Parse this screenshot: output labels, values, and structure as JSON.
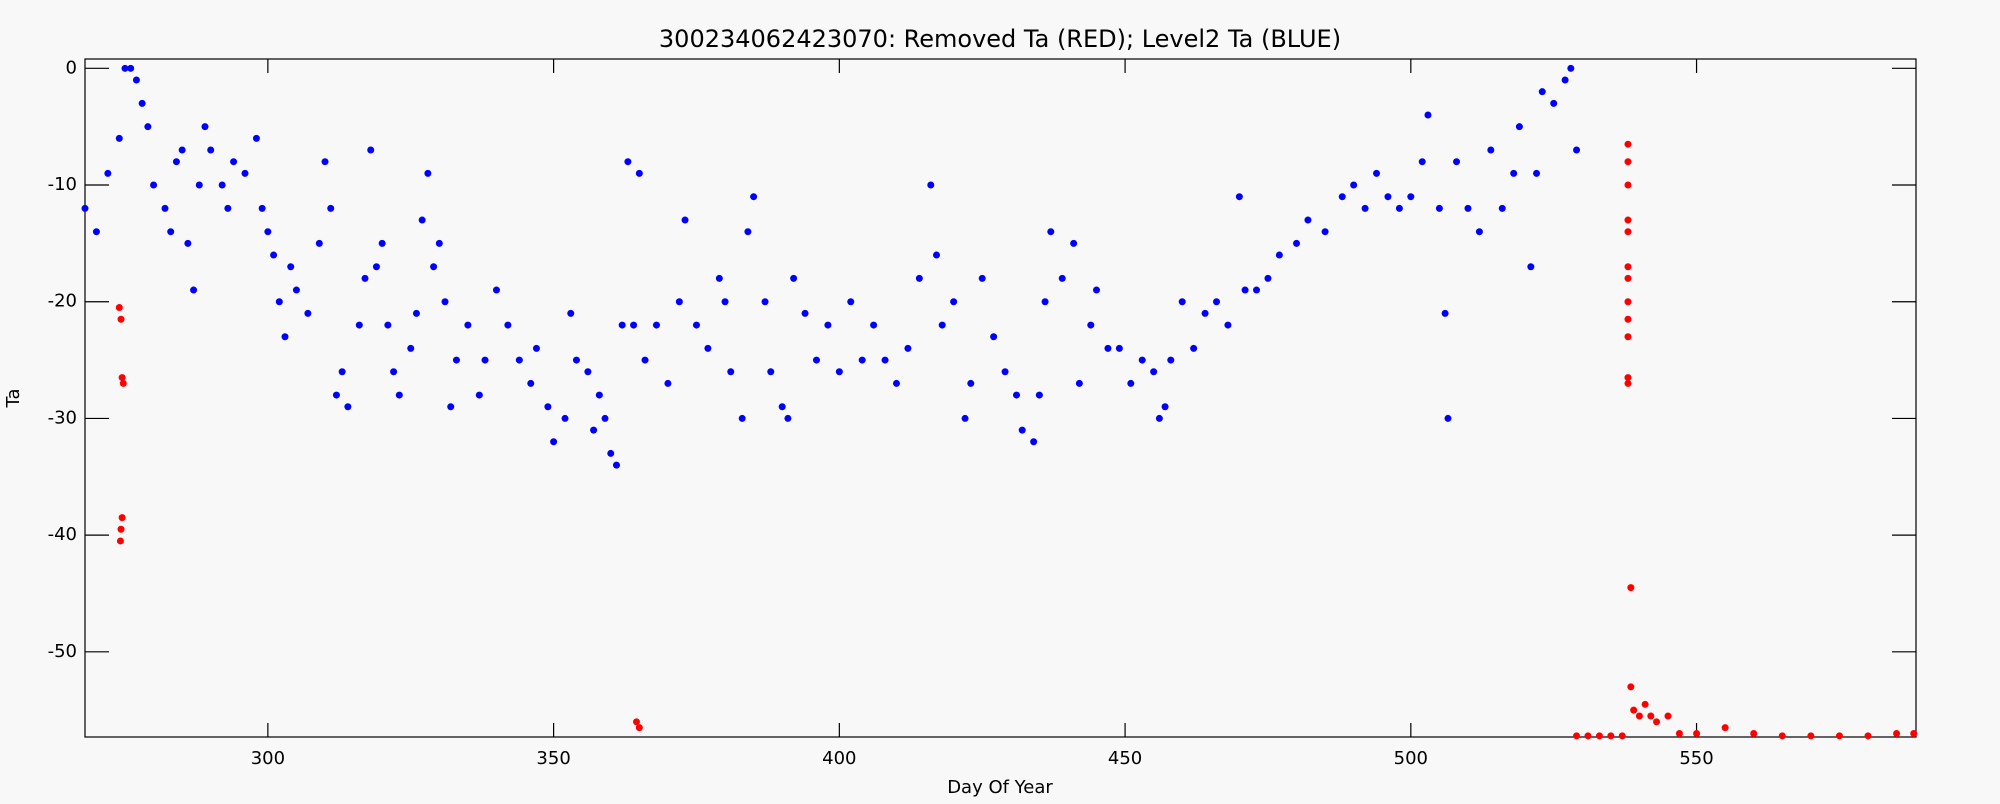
{
  "chart_data": {
    "type": "scatter",
    "title": "300234062423070: Removed Ta (RED); Level2 Ta (BLUE)",
    "x_label": "Day Of Year",
    "y_label": "Ta",
    "xlim": [
      268,
      588.4
    ],
    "ylim": [
      -57.3,
      0.8
    ],
    "xticks": [
      300,
      350,
      400,
      450,
      500,
      550
    ],
    "yticks": [
      -50,
      -40,
      -30,
      -20,
      -10,
      0
    ],
    "series": [
      {
        "color": "#0000ff",
        "x": [
          268,
          270,
          272,
          274,
          275,
          276,
          277,
          278,
          279,
          280,
          282,
          283,
          284,
          285,
          286,
          287,
          288,
          289,
          290,
          292,
          293,
          294,
          296,
          298,
          299,
          300,
          301,
          302,
          303,
          304,
          305,
          307,
          309,
          310,
          311,
          312,
          313,
          314,
          316,
          317,
          318,
          319,
          320,
          321,
          322,
          323,
          325,
          326,
          327,
          328,
          329,
          330,
          331,
          332,
          333,
          335,
          337,
          338,
          340,
          342,
          344,
          346,
          347,
          349,
          350,
          352,
          353,
          354,
          356,
          357,
          358,
          359,
          360,
          361,
          362,
          363,
          364,
          365,
          366,
          368,
          370,
          372,
          373,
          375,
          377,
          379,
          380,
          381,
          383,
          384,
          385,
          387,
          388,
          390,
          391,
          392,
          394,
          396,
          398,
          400,
          402,
          404,
          406,
          408,
          410,
          412,
          414,
          416,
          417,
          418,
          420,
          422,
          423,
          425,
          427,
          429,
          431,
          432,
          434,
          435,
          436,
          437,
          439,
          441,
          442,
          444,
          445,
          447,
          449,
          451,
          453,
          455,
          456,
          457,
          458,
          460,
          462,
          464,
          466,
          468,
          470,
          471,
          473,
          475,
          477,
          480,
          482,
          485,
          488,
          490,
          492,
          494,
          496,
          498,
          500,
          502,
          503,
          505,
          506,
          506.5,
          508,
          510,
          512,
          514,
          516,
          518,
          519,
          521,
          522,
          523,
          525,
          527,
          528,
          529
        ],
        "values": [
          -12,
          -14,
          -9,
          -6,
          0,
          0,
          -1,
          -3,
          -5,
          -10,
          -12,
          -14,
          -8,
          -7,
          -15,
          -19,
          -10,
          -5,
          -7,
          -10,
          -12,
          -8,
          -9,
          -6,
          -12,
          -14,
          -16,
          -20,
          -23,
          -17,
          -19,
          -21,
          -15,
          -8,
          -12,
          -28,
          -26,
          -29,
          -22,
          -18,
          -7,
          -17,
          -15,
          -22,
          -26,
          -28,
          -24,
          -21,
          -13,
          -9,
          -17,
          -15,
          -20,
          -29,
          -25,
          -22,
          -28,
          -25,
          -19,
          -22,
          -25,
          -27,
          -24,
          -29,
          -32,
          -30,
          -21,
          -25,
          -26,
          -31,
          -28,
          -30,
          -33,
          -34,
          -22,
          -8,
          -22,
          -9,
          -25,
          -22,
          -27,
          -20,
          -13,
          -22,
          -24,
          -18,
          -20,
          -26,
          -30,
          -14,
          -11,
          -20,
          -26,
          -29,
          -30,
          -18,
          -21,
          -25,
          -22,
          -26,
          -20,
          -25,
          -22,
          -25,
          -27,
          -24,
          -18,
          -10,
          -16,
          -22,
          -20,
          -30,
          -27,
          -18,
          -23,
          -26,
          -28,
          -31,
          -32,
          -28,
          -20,
          -14,
          -18,
          -15,
          -27,
          -22,
          -19,
          -24,
          -24,
          -27,
          -25,
          -26,
          -30,
          -29,
          -25,
          -20,
          -24,
          -21,
          -20,
          -22,
          -11,
          -19,
          -19,
          -18,
          -16,
          -15,
          -13,
          -14,
          -11,
          -10,
          -12,
          -9,
          -11,
          -12,
          -11,
          -8,
          -4,
          -12,
          -21,
          -30,
          -8,
          -12,
          -14,
          -7,
          -12,
          -9,
          -5,
          -17,
          -9,
          -2,
          -3,
          -1,
          0,
          -7
        ]
      },
      {
        "color": "#ff0000",
        "x": [
          274,
          274.3,
          274.5,
          274.7,
          274.5,
          274.3,
          274.2,
          364.5,
          365,
          529,
          531,
          533,
          535,
          537,
          538,
          538,
          538,
          538,
          538,
          538,
          538,
          538,
          538,
          538,
          538,
          538,
          538.5,
          538.5,
          539,
          540,
          541,
          542,
          543,
          545,
          547,
          550,
          555,
          560,
          565,
          570,
          575,
          580,
          585,
          588
        ],
        "values": [
          -20.5,
          -21.5,
          -26.5,
          -27,
          -38.5,
          -39.5,
          -40.5,
          -56,
          -56.5,
          -57.2,
          -57.2,
          -57.2,
          -57.2,
          -57.2,
          -6.5,
          -8,
          -10,
          -13,
          -14,
          -17,
          -18,
          -20,
          -21.5,
          -23,
          -26.5,
          -27,
          -44.5,
          -53,
          -55,
          -55.5,
          -54.5,
          -55.5,
          -56,
          -55.5,
          -57,
          -57,
          -56.5,
          -57,
          -57.2,
          -57.2,
          -57.2,
          -57.2,
          -57,
          -57
        ]
      }
    ]
  }
}
